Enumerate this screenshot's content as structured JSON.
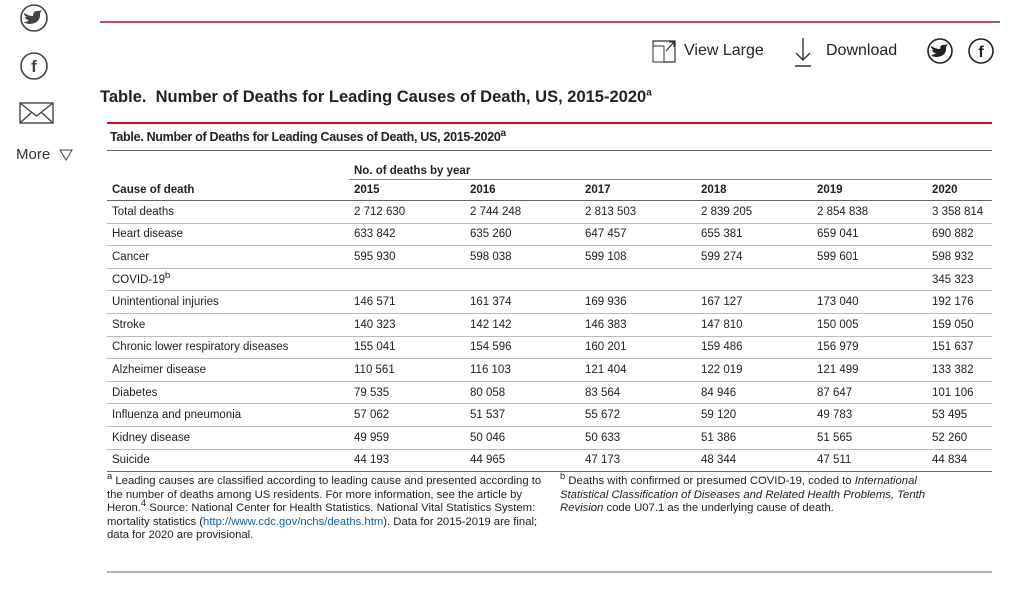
{
  "sidebar": {
    "more": "More"
  },
  "toolbar": {
    "view_large": "View Large",
    "download": "Download"
  },
  "title": {
    "text": "Table.  Number of Deaths for Leading Causes of Death, US, 2015-2020",
    "sup": "a"
  },
  "table": {
    "caption": {
      "text": "Table. Number of Deaths for Leading Causes of Death, US, 2015-2020",
      "sup": "a"
    },
    "group_header": "No. of deaths by year",
    "columns": [
      "Cause of death",
      "2015",
      "2016",
      "2017",
      "2018",
      "2019",
      "2020"
    ],
    "rows": [
      {
        "cause": "Total deaths",
        "values": [
          "2 712 630",
          "2 744 248",
          "2 813 503",
          "2 839 205",
          "2 854 838",
          "3 358 814"
        ]
      },
      {
        "cause": "Heart disease",
        "values": [
          "633 842",
          "635 260",
          "647 457",
          "655 381",
          "659 041",
          "690 882"
        ]
      },
      {
        "cause": "Cancer",
        "values": [
          "595 930",
          "598 038",
          "599 108",
          "599 274",
          "599 601",
          "598 932"
        ]
      },
      {
        "cause": "COVID-19",
        "sup": "b",
        "values": [
          null,
          null,
          null,
          null,
          null,
          "345 323"
        ]
      },
      {
        "cause": "Unintentional injuries",
        "values": [
          "146 571",
          "161 374",
          "169 936",
          "167 127",
          "173 040",
          "192 176"
        ]
      },
      {
        "cause": "Stroke",
        "values": [
          "140 323",
          "142 142",
          "146 383",
          "147 810",
          "150 005",
          "159 050"
        ]
      },
      {
        "cause": "Chronic lower respiratory diseases",
        "values": [
          "155 041",
          "154 596",
          "160 201",
          "159 486",
          "156 979",
          "151 637"
        ]
      },
      {
        "cause": "Alzheimer disease",
        "values": [
          "110 561",
          "116 103",
          "121 404",
          "122 019",
          "121 499",
          "133 382"
        ]
      },
      {
        "cause": "Diabetes",
        "values": [
          "79 535",
          "80 058",
          "83 564",
          "84 946",
          "87 647",
          "101 106"
        ]
      },
      {
        "cause": "Influenza and pneumonia",
        "values": [
          "57 062",
          "51 537",
          "55 672",
          "59 120",
          "49 783",
          "53 495"
        ]
      },
      {
        "cause": "Kidney disease",
        "values": [
          "49 959",
          "50 046",
          "50 633",
          "51 386",
          "51 565",
          "52 260"
        ]
      },
      {
        "cause": "Suicide",
        "values": [
          "44 193",
          "44 965",
          "47 173",
          "48 344",
          "47 511",
          "44 834"
        ]
      }
    ],
    "footnotes": {
      "a": {
        "mark": "a",
        "text1": "Leading causes are classified according to leading cause and presented according to the number of deaths among US residents. For more information, see the article by Heron.",
        "ref": "4",
        "text2": " Source: National Center for Health Statistics. National Vital Statistics System: mortality statistics (",
        "link": "http://www.cdc.gov/nchs/deaths.htm",
        "text3": "). Data for 2015-2019 are final; data for 2020 are provisional."
      },
      "b": {
        "mark": "b",
        "text1": "Deaths with confirmed or presumed COVID-19, coded to ",
        "italic": "International Statistical Classification of Diseases and Related Health Problems, Tenth Revision",
        "text2": " code U07.1 as the underlying cause of death."
      }
    }
  }
}
